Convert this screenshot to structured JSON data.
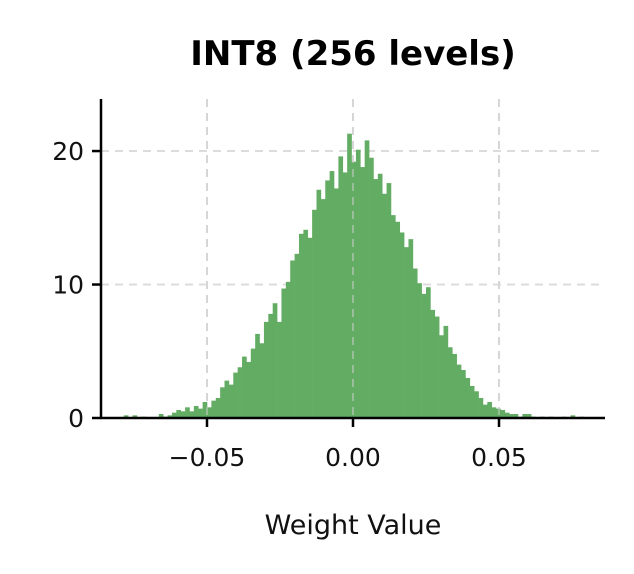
{
  "chart_data": {
    "type": "bar",
    "subtype": "histogram",
    "title": "INT8 (256 levels)",
    "xlabel": "Weight Value",
    "ylabel": "",
    "xlim": [
      -0.0863,
      0.0863
    ],
    "ylim": [
      0,
      23.9
    ],
    "x_ticks": [
      -0.05,
      0.0,
      0.05
    ],
    "x_tick_labels": [
      "−0.05",
      "0.00",
      "0.05"
    ],
    "y_ticks": [
      0,
      10,
      20
    ],
    "y_tick_labels": [
      "0",
      "10",
      "20"
    ],
    "grid": true,
    "grid_style": "dashed",
    "color": "#63ac63",
    "bins": {
      "start": -0.08,
      "width": 0.0015
    },
    "values": [
      0,
      0.2,
      0,
      0.2,
      0,
      0.1,
      0,
      0,
      0,
      0.3,
      0.1,
      0.2,
      0.4,
      0.6,
      0.5,
      0.8,
      0.5,
      0.9,
      0.7,
      1.2,
      0.8,
      1.3,
      1.5,
      2.3,
      2.8,
      2.5,
      3.4,
      3.8,
      4.6,
      4.2,
      5.2,
      6.3,
      5.6,
      7.2,
      7.8,
      8.6,
      7.2,
      9.7,
      10.2,
      11.8,
      12.3,
      13.8,
      14.1,
      13.5,
      15.6,
      17.1,
      16.4,
      17.8,
      18.5,
      17.2,
      19.6,
      18.4,
      21.3,
      19.2,
      20.1,
      18.8,
      20.8,
      19.5,
      17.9,
      18.3,
      16.8,
      17.6,
      15.2,
      14.7,
      13.9,
      12.8,
      13.4,
      11.2,
      10.1,
      9.3,
      9.8,
      8.1,
      7.6,
      6.2,
      6.9,
      5.3,
      4.8,
      4.0,
      3.6,
      3.0,
      2.4,
      2.0,
      1.5,
      1.0,
      1.2,
      0.8,
      0.7,
      0.6,
      0.4,
      0.3,
      0.3,
      0.1,
      0.3,
      0.3,
      0.1,
      0,
      0.1,
      0,
      0.1,
      0,
      0,
      0.1,
      0,
      0.2,
      0,
      0.1,
      0
    ]
  }
}
